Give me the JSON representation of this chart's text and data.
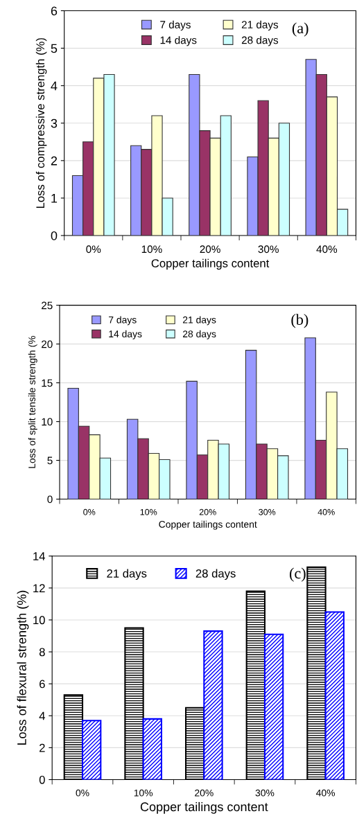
{
  "chart_data": [
    {
      "type": "bar",
      "xlabel": "Copper tailings content",
      "ylabel": "Loss of compressive strength (%)",
      "annotations": [
        "(a)"
      ],
      "categories": [
        "0%",
        "10%",
        "20%",
        "30%",
        "40%"
      ],
      "series": [
        {
          "name": "7 days",
          "color": "#9999ff",
          "values": [
            1.6,
            2.4,
            4.3,
            2.1,
            4.7
          ]
        },
        {
          "name": "14 days",
          "color": "#993366",
          "values": [
            2.5,
            2.3,
            2.8,
            3.6,
            4.3
          ]
        },
        {
          "name": "21 days",
          "color": "#ffffcc",
          "values": [
            4.2,
            3.2,
            2.6,
            2.6,
            3.7
          ]
        },
        {
          "name": "28 days",
          "color": "#ccffff",
          "values": [
            4.3,
            1.0,
            3.2,
            3.0,
            0.7
          ]
        }
      ],
      "ylim": [
        0,
        6
      ],
      "yticks": [
        0,
        1,
        2,
        3,
        4,
        5,
        6
      ],
      "grid": "y",
      "legend": "top"
    },
    {
      "type": "bar",
      "xlabel": "Copper tailings content",
      "ylabel": "Loss of split tensile strength (%",
      "annotations": [
        "(b)"
      ],
      "categories": [
        "0%",
        "10%",
        "20%",
        "30%",
        "40%"
      ],
      "series": [
        {
          "name": "7 days",
          "color": "#9999ff",
          "values": [
            14.3,
            10.3,
            15.2,
            19.2,
            20.8
          ]
        },
        {
          "name": "14 days",
          "color": "#993366",
          "values": [
            9.4,
            7.8,
            5.7,
            7.1,
            7.6
          ]
        },
        {
          "name": "21 days",
          "color": "#ffffcc",
          "values": [
            8.3,
            5.9,
            7.6,
            6.5,
            13.8
          ]
        },
        {
          "name": "28 days",
          "color": "#ccffff",
          "values": [
            5.3,
            5.1,
            7.1,
            5.6,
            6.5
          ]
        }
      ],
      "ylim": [
        0,
        25
      ],
      "yticks": [
        0,
        5,
        10,
        15,
        20,
        25
      ],
      "grid": "y",
      "legend": "top left"
    },
    {
      "type": "bar",
      "xlabel": "Copper tailings content",
      "ylabel": "Loss of flexural strength (%)",
      "annotations": [
        "(c)"
      ],
      "categories": [
        "0%",
        "10%",
        "20%",
        "30%",
        "40%"
      ],
      "series": [
        {
          "name": "21 days",
          "color": "#000000",
          "values": [
            5.3,
            9.5,
            4.5,
            11.8,
            13.3
          ]
        },
        {
          "name": "28 days",
          "color": "#0000ff",
          "values": [
            3.7,
            3.8,
            9.3,
            9.1,
            10.5
          ]
        }
      ],
      "ylim": [
        0,
        14
      ],
      "yticks": [
        0,
        2,
        4,
        6,
        8,
        10,
        12,
        14
      ],
      "grid": "y",
      "legend": "top left"
    }
  ]
}
